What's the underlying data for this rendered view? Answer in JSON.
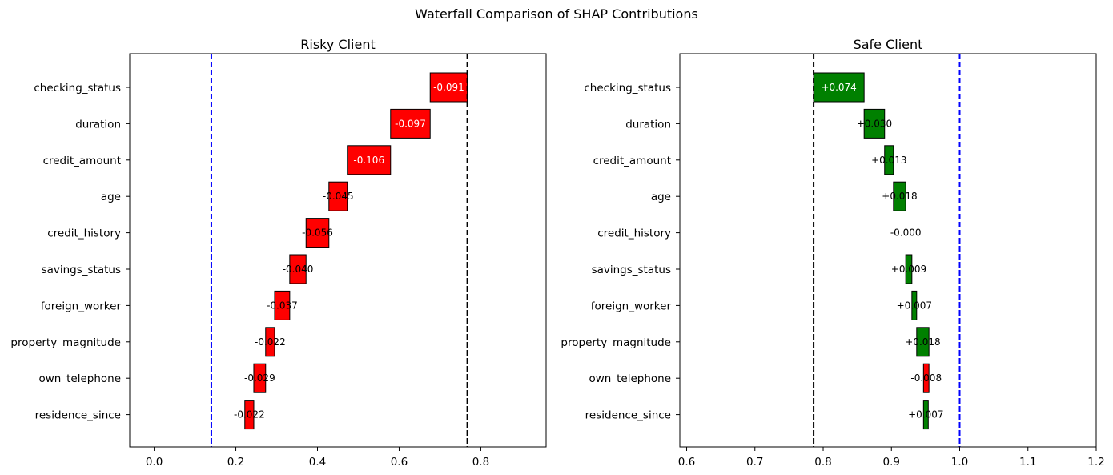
{
  "figure": {
    "suptitle": "Waterfall Comparison of SHAP Contributions"
  },
  "chart_data": [
    {
      "type": "bar",
      "orientation": "horizontal",
      "chart_style": "waterfall",
      "title": "Risky Client",
      "xlabel": "",
      "ylabel": "",
      "xlim": [
        -0.06,
        0.96
      ],
      "xticks": [
        0.0,
        0.2,
        0.4,
        0.6,
        0.8
      ],
      "xtick_labels": [
        "0.0",
        "0.2",
        "0.4",
        "0.6",
        "0.8"
      ],
      "categories": [
        "checking_status",
        "duration",
        "credit_amount",
        "age",
        "credit_history",
        "savings_status",
        "foreign_worker",
        "property_magnitude",
        "own_telephone",
        "residence_since"
      ],
      "values": [
        -0.091,
        -0.097,
        -0.106,
        -0.045,
        -0.056,
        -0.04,
        -0.037,
        -0.022,
        -0.029,
        -0.022
      ],
      "value_labels": [
        "-0.091",
        "-0.097",
        "-0.106",
        "-0.045",
        "-0.056",
        "-0.040",
        "-0.037",
        "-0.022",
        "-0.029",
        "-0.022"
      ],
      "start_value": 0.767,
      "reference_lines": [
        {
          "x": 0.767,
          "color": "#000000"
        },
        {
          "x": 0.14,
          "color": "#0000ff"
        }
      ],
      "positive_color": "#008000",
      "negative_color": "#ff0000",
      "grid": false,
      "legend": "none"
    },
    {
      "type": "bar",
      "orientation": "horizontal",
      "chart_style": "waterfall",
      "title": "Safe Client",
      "xlabel": "",
      "ylabel": "",
      "xlim": [
        0.59,
        1.2
      ],
      "xticks": [
        0.6,
        0.7,
        0.8,
        0.9,
        1.0,
        1.1,
        1.2
      ],
      "xtick_labels": [
        "0.6",
        "0.7",
        "0.8",
        "0.9",
        "1.0",
        "1.1",
        "1.2"
      ],
      "categories": [
        "checking_status",
        "duration",
        "credit_amount",
        "age",
        "credit_history",
        "savings_status",
        "foreign_worker",
        "property_magnitude",
        "own_telephone",
        "residence_since"
      ],
      "values": [
        0.074,
        0.03,
        0.013,
        0.018,
        -0.0,
        0.009,
        0.007,
        0.018,
        -0.008,
        0.007
      ],
      "value_labels": [
        "+0.074",
        "+0.030",
        "+0.013",
        "+0.018",
        "-0.000",
        "+0.009",
        "+0.007",
        "+0.018",
        "-0.008",
        "+0.007"
      ],
      "start_value": 0.786,
      "reference_lines": [
        {
          "x": 0.786,
          "color": "#000000"
        },
        {
          "x": 1.0,
          "color": "#0000ff"
        }
      ],
      "positive_color": "#008000",
      "negative_color": "#ff0000",
      "grid": false,
      "legend": "none"
    }
  ]
}
